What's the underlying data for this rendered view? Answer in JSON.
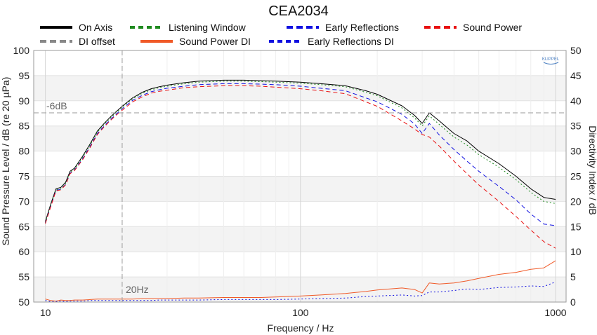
{
  "chart_data": {
    "type": "line",
    "title": "CEA2034",
    "xlabel": "Frequency / Hz",
    "ylabel": "Sound Pressure Level / dB (re 20 µPa)",
    "y2label": "Directivity Index / dB",
    "xscale": "log",
    "xlim": [
      9,
      1100
    ],
    "ylim": [
      50,
      100
    ],
    "y2lim": [
      0,
      50
    ],
    "x_ticks": [
      "10",
      "100",
      "1000"
    ],
    "y_ticks": [
      "100",
      "95",
      "90",
      "85",
      "80",
      "75",
      "70",
      "65",
      "60",
      "55",
      "50"
    ],
    "y2_ticks": [
      "50",
      "45",
      "40",
      "35",
      "30",
      "25",
      "20",
      "15",
      "10",
      "5",
      "0"
    ],
    "grid": true,
    "legend_placement": "top",
    "logo_text": "KLIPPEL",
    "annotations": [
      {
        "text": "-6dB",
        "axis": "left",
        "y": 87.6,
        "orientation": "horizontal"
      },
      {
        "text": "20Hz",
        "x": 20,
        "orientation": "vertical"
      }
    ],
    "x": [
      10,
      10.5,
      11,
      11.5,
      12,
      12.5,
      13,
      14,
      15,
      16,
      17,
      18,
      19,
      20,
      22,
      24,
      26,
      28,
      30,
      35,
      40,
      50,
      60,
      70,
      80,
      100,
      120,
      150,
      180,
      200,
      250,
      280,
      300,
      320,
      350,
      400,
      450,
      500,
      600,
      700,
      800,
      900,
      1000
    ],
    "series": [
      {
        "name": "On Axis",
        "axis": "left",
        "color": "#000000",
        "dash": "solid",
        "values": [
          66.0,
          69.5,
          72.5,
          72.8,
          73.8,
          76.0,
          76.6,
          79.0,
          81.5,
          84.0,
          85.5,
          86.8,
          87.9,
          88.9,
          90.6,
          91.7,
          92.4,
          92.8,
          93.1,
          93.6,
          93.9,
          94.1,
          94.1,
          94.0,
          93.9,
          93.7,
          93.4,
          93.0,
          92.0,
          91.3,
          89.0,
          87.1,
          85.5,
          87.6,
          86.0,
          83.5,
          82.0,
          80.0,
          77.5,
          75.0,
          72.5,
          70.8,
          70.4
        ]
      },
      {
        "name": "Listening Window",
        "axis": "left",
        "color": "#1f8a1f",
        "dash": "dotted",
        "values": [
          65.8,
          69.3,
          72.3,
          72.6,
          73.6,
          75.8,
          76.4,
          78.8,
          81.3,
          83.8,
          85.3,
          86.6,
          87.7,
          88.7,
          90.4,
          91.5,
          92.2,
          92.6,
          92.9,
          93.4,
          93.7,
          93.9,
          93.9,
          93.8,
          93.7,
          93.5,
          93.2,
          92.8,
          91.7,
          91.0,
          88.6,
          86.6,
          85.0,
          87.0,
          85.3,
          82.8,
          81.2,
          79.3,
          76.8,
          74.3,
          71.8,
          70.0,
          69.6
        ]
      },
      {
        "name": "Early Reflections",
        "axis": "left",
        "color": "#1010e0",
        "dash": "dashed",
        "values": [
          65.7,
          69.1,
          72.2,
          72.4,
          73.4,
          75.6,
          76.2,
          78.5,
          81.0,
          83.5,
          85.0,
          86.3,
          87.4,
          88.4,
          90.1,
          91.1,
          91.8,
          92.2,
          92.5,
          92.9,
          93.2,
          93.4,
          93.4,
          93.3,
          93.2,
          92.9,
          92.5,
          92.0,
          90.6,
          89.8,
          87.3,
          85.4,
          83.5,
          85.5,
          83.2,
          80.3,
          78.0,
          76.0,
          73.0,
          70.3,
          67.5,
          65.5,
          65.2
        ]
      },
      {
        "name": "Sound Power",
        "axis": "left",
        "color": "#e81010",
        "dash": "dashed",
        "values": [
          65.6,
          69.0,
          72.1,
          72.3,
          73.3,
          75.5,
          76.1,
          78.3,
          80.8,
          83.3,
          84.8,
          86.1,
          87.2,
          88.1,
          89.8,
          90.8,
          91.5,
          91.9,
          92.1,
          92.6,
          92.8,
          93.0,
          93.0,
          92.9,
          92.7,
          92.4,
          92.0,
          91.4,
          89.8,
          88.9,
          86.0,
          84.4,
          83.3,
          82.8,
          81.0,
          78.0,
          75.5,
          73.3,
          70.0,
          67.0,
          64.3,
          62.0,
          60.7
        ]
      },
      {
        "name": "DI offset",
        "axis": "right",
        "color": "#888888",
        "dash": "dashed",
        "values": [
          37.6,
          37.6,
          37.6,
          37.6,
          37.6,
          37.6,
          37.6,
          37.6,
          37.6,
          37.6,
          37.6,
          37.6,
          37.6,
          37.6,
          37.6,
          37.6,
          37.6,
          37.6,
          37.6,
          37.6,
          37.6,
          37.6,
          37.6,
          37.6,
          37.6,
          37.6,
          37.6,
          37.6,
          37.6,
          37.6,
          37.6,
          37.6,
          37.6,
          37.6,
          37.6,
          37.6,
          37.6,
          37.6,
          37.6,
          37.6,
          37.6,
          37.6,
          37.6
        ]
      },
      {
        "name": "Sound Power DI",
        "axis": "right",
        "color": "#f05a28",
        "dash": "solid",
        "values": [
          0.6,
          0.3,
          0.2,
          0.4,
          0.3,
          0.3,
          0.4,
          0.4,
          0.5,
          0.6,
          0.6,
          0.6,
          0.6,
          0.6,
          0.6,
          0.7,
          0.7,
          0.7,
          0.7,
          0.8,
          0.8,
          0.9,
          0.9,
          0.9,
          1.0,
          1.2,
          1.4,
          1.7,
          2.1,
          2.4,
          2.8,
          2.5,
          1.8,
          3.8,
          3.6,
          3.8,
          4.2,
          4.7,
          5.5,
          5.9,
          6.5,
          6.8,
          8.2
        ]
      },
      {
        "name": "Early Reflections DI",
        "axis": "right",
        "color": "#1010e0",
        "dash": "dotted",
        "values": [
          0.3,
          0.1,
          0.1,
          0.2,
          0.1,
          0.2,
          0.2,
          0.2,
          0.3,
          0.3,
          0.3,
          0.3,
          0.3,
          0.3,
          0.3,
          0.3,
          0.3,
          0.4,
          0.4,
          0.4,
          0.4,
          0.5,
          0.5,
          0.5,
          0.5,
          0.6,
          0.7,
          0.8,
          1.1,
          1.2,
          1.4,
          1.2,
          1.3,
          2.0,
          2.0,
          2.3,
          2.6,
          2.5,
          2.9,
          3.0,
          3.2,
          3.1,
          4.0
        ]
      }
    ]
  }
}
